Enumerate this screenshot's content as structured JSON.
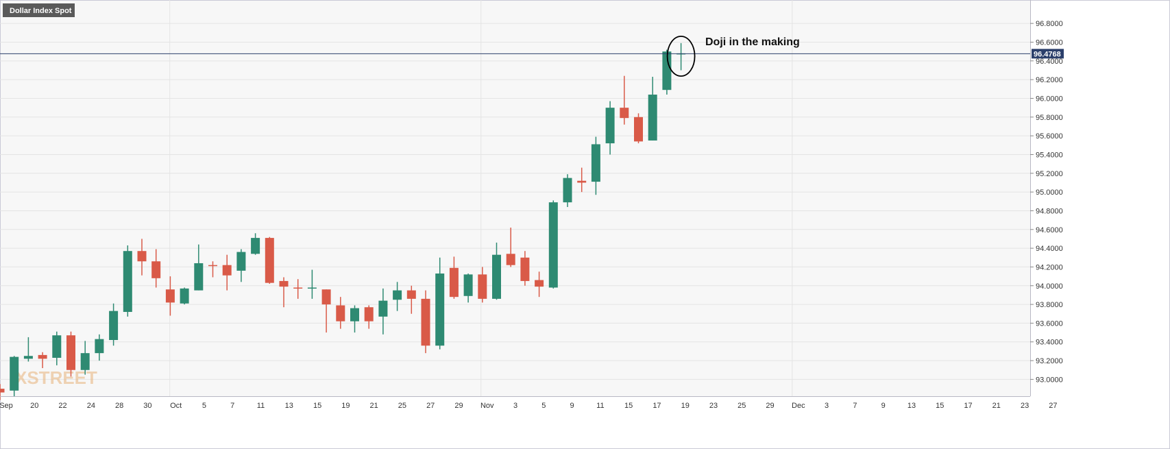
{
  "chart_data": {
    "type": "candlestick",
    "title": "Dollar Index Spot",
    "last_price_label": "96.4768",
    "last_price": 96.4768,
    "annotation": "Doji in the making",
    "watermark": "XSTREET",
    "y_ticks": [
      "93.0000",
      "93.2000",
      "93.4000",
      "93.6000",
      "93.8000",
      "94.0000",
      "94.2000",
      "94.4000",
      "94.6000",
      "94.8000",
      "95.0000",
      "95.2000",
      "95.4000",
      "95.6000",
      "95.8000",
      "96.0000",
      "96.2000",
      "96.4000",
      "96.6000",
      "96.8000"
    ],
    "ylim": [
      92.82,
      97.05
    ],
    "x_ticks": [
      "Sep",
      "20",
      "22",
      "24",
      "28",
      "30",
      "Oct",
      "5",
      "7",
      "11",
      "13",
      "15",
      "19",
      "21",
      "25",
      "27",
      "29",
      "Nov",
      "3",
      "5",
      "9",
      "11",
      "15",
      "17",
      "19",
      "23",
      "25",
      "29",
      "Dec",
      "3",
      "7",
      "9",
      "13",
      "15",
      "17",
      "21",
      "23",
      "27"
    ],
    "grid": true,
    "colors": {
      "up": "#2e8a72",
      "down": "#d95a48",
      "price_line": "#2b3f6b",
      "badge": "#5a5a5a",
      "grid": "#e4e4e4",
      "background": "#f7f7f7"
    },
    "candles": [
      {
        "o": 92.9,
        "h": 92.95,
        "l": 92.78,
        "c": 92.86
      },
      {
        "o": 92.88,
        "h": 93.25,
        "l": 92.82,
        "c": 93.24
      },
      {
        "o": 93.22,
        "h": 93.45,
        "l": 93.19,
        "c": 93.25
      },
      {
        "o": 93.26,
        "h": 93.29,
        "l": 93.12,
        "c": 93.22
      },
      {
        "o": 93.23,
        "h": 93.51,
        "l": 93.15,
        "c": 93.47
      },
      {
        "o": 93.47,
        "h": 93.51,
        "l": 93.03,
        "c": 93.1
      },
      {
        "o": 93.1,
        "h": 93.41,
        "l": 93.05,
        "c": 93.28
      },
      {
        "o": 93.28,
        "h": 93.48,
        "l": 93.2,
        "c": 93.43
      },
      {
        "o": 93.42,
        "h": 93.81,
        "l": 93.36,
        "c": 93.73
      },
      {
        "o": 93.72,
        "h": 94.43,
        "l": 93.67,
        "c": 94.37
      },
      {
        "o": 94.37,
        "h": 94.5,
        "l": 94.11,
        "c": 94.26
      },
      {
        "o": 94.26,
        "h": 94.39,
        "l": 93.98,
        "c": 94.08
      },
      {
        "o": 93.96,
        "h": 94.1,
        "l": 93.68,
        "c": 93.82
      },
      {
        "o": 93.81,
        "h": 93.98,
        "l": 93.8,
        "c": 93.97
      },
      {
        "o": 93.95,
        "h": 94.44,
        "l": 93.95,
        "c": 94.24
      },
      {
        "o": 94.22,
        "h": 94.26,
        "l": 94.09,
        "c": 94.21
      },
      {
        "o": 94.22,
        "h": 94.33,
        "l": 93.95,
        "c": 94.11
      },
      {
        "o": 94.16,
        "h": 94.39,
        "l": 94.04,
        "c": 94.36
      },
      {
        "o": 94.34,
        "h": 94.56,
        "l": 94.33,
        "c": 94.51
      },
      {
        "o": 94.51,
        "h": 94.52,
        "l": 94.02,
        "c": 94.03
      },
      {
        "o": 94.05,
        "h": 94.09,
        "l": 93.77,
        "c": 93.99
      },
      {
        "o": 93.98,
        "h": 94.07,
        "l": 93.86,
        "c": 93.97
      },
      {
        "o": 93.98,
        "h": 94.17,
        "l": 93.86,
        "c": 93.98
      },
      {
        "o": 93.96,
        "h": 93.96,
        "l": 93.5,
        "c": 93.8
      },
      {
        "o": 93.79,
        "h": 93.88,
        "l": 93.54,
        "c": 93.62
      },
      {
        "o": 93.62,
        "h": 93.79,
        "l": 93.5,
        "c": 93.76
      },
      {
        "o": 93.77,
        "h": 93.79,
        "l": 93.54,
        "c": 93.62
      },
      {
        "o": 93.67,
        "h": 93.97,
        "l": 93.48,
        "c": 93.84
      },
      {
        "o": 93.85,
        "h": 94.04,
        "l": 93.73,
        "c": 93.95
      },
      {
        "o": 93.95,
        "h": 94.0,
        "l": 93.7,
        "c": 93.86
      },
      {
        "o": 93.86,
        "h": 93.95,
        "l": 93.28,
        "c": 93.36
      },
      {
        "o": 93.36,
        "h": 94.3,
        "l": 93.32,
        "c": 94.13
      },
      {
        "o": 94.19,
        "h": 94.31,
        "l": 93.86,
        "c": 93.88
      },
      {
        "o": 93.89,
        "h": 94.13,
        "l": 93.82,
        "c": 94.12
      },
      {
        "o": 94.12,
        "h": 94.2,
        "l": 93.82,
        "c": 93.86
      },
      {
        "o": 93.86,
        "h": 94.46,
        "l": 93.85,
        "c": 94.33
      },
      {
        "o": 94.34,
        "h": 94.62,
        "l": 94.2,
        "c": 94.22
      },
      {
        "o": 94.3,
        "h": 94.37,
        "l": 94.0,
        "c": 94.05
      },
      {
        "o": 94.06,
        "h": 94.15,
        "l": 93.88,
        "c": 93.99
      },
      {
        "o": 93.98,
        "h": 94.91,
        "l": 93.97,
        "c": 94.89
      },
      {
        "o": 94.89,
        "h": 95.19,
        "l": 94.84,
        "c": 95.15
      },
      {
        "o": 95.12,
        "h": 95.26,
        "l": 95.0,
        "c": 95.1
      },
      {
        "o": 95.11,
        "h": 95.59,
        "l": 94.97,
        "c": 95.51
      },
      {
        "o": 95.52,
        "h": 95.97,
        "l": 95.4,
        "c": 95.9
      },
      {
        "o": 95.9,
        "h": 96.24,
        "l": 95.72,
        "c": 95.79
      },
      {
        "o": 95.8,
        "h": 95.84,
        "l": 95.52,
        "c": 95.54
      },
      {
        "o": 95.55,
        "h": 96.23,
        "l": 95.55,
        "c": 96.04
      },
      {
        "o": 96.09,
        "h": 96.52,
        "l": 96.04,
        "c": 96.5
      },
      {
        "o": 96.48,
        "h": 96.59,
        "l": 96.3,
        "c": 96.48
      }
    ]
  }
}
